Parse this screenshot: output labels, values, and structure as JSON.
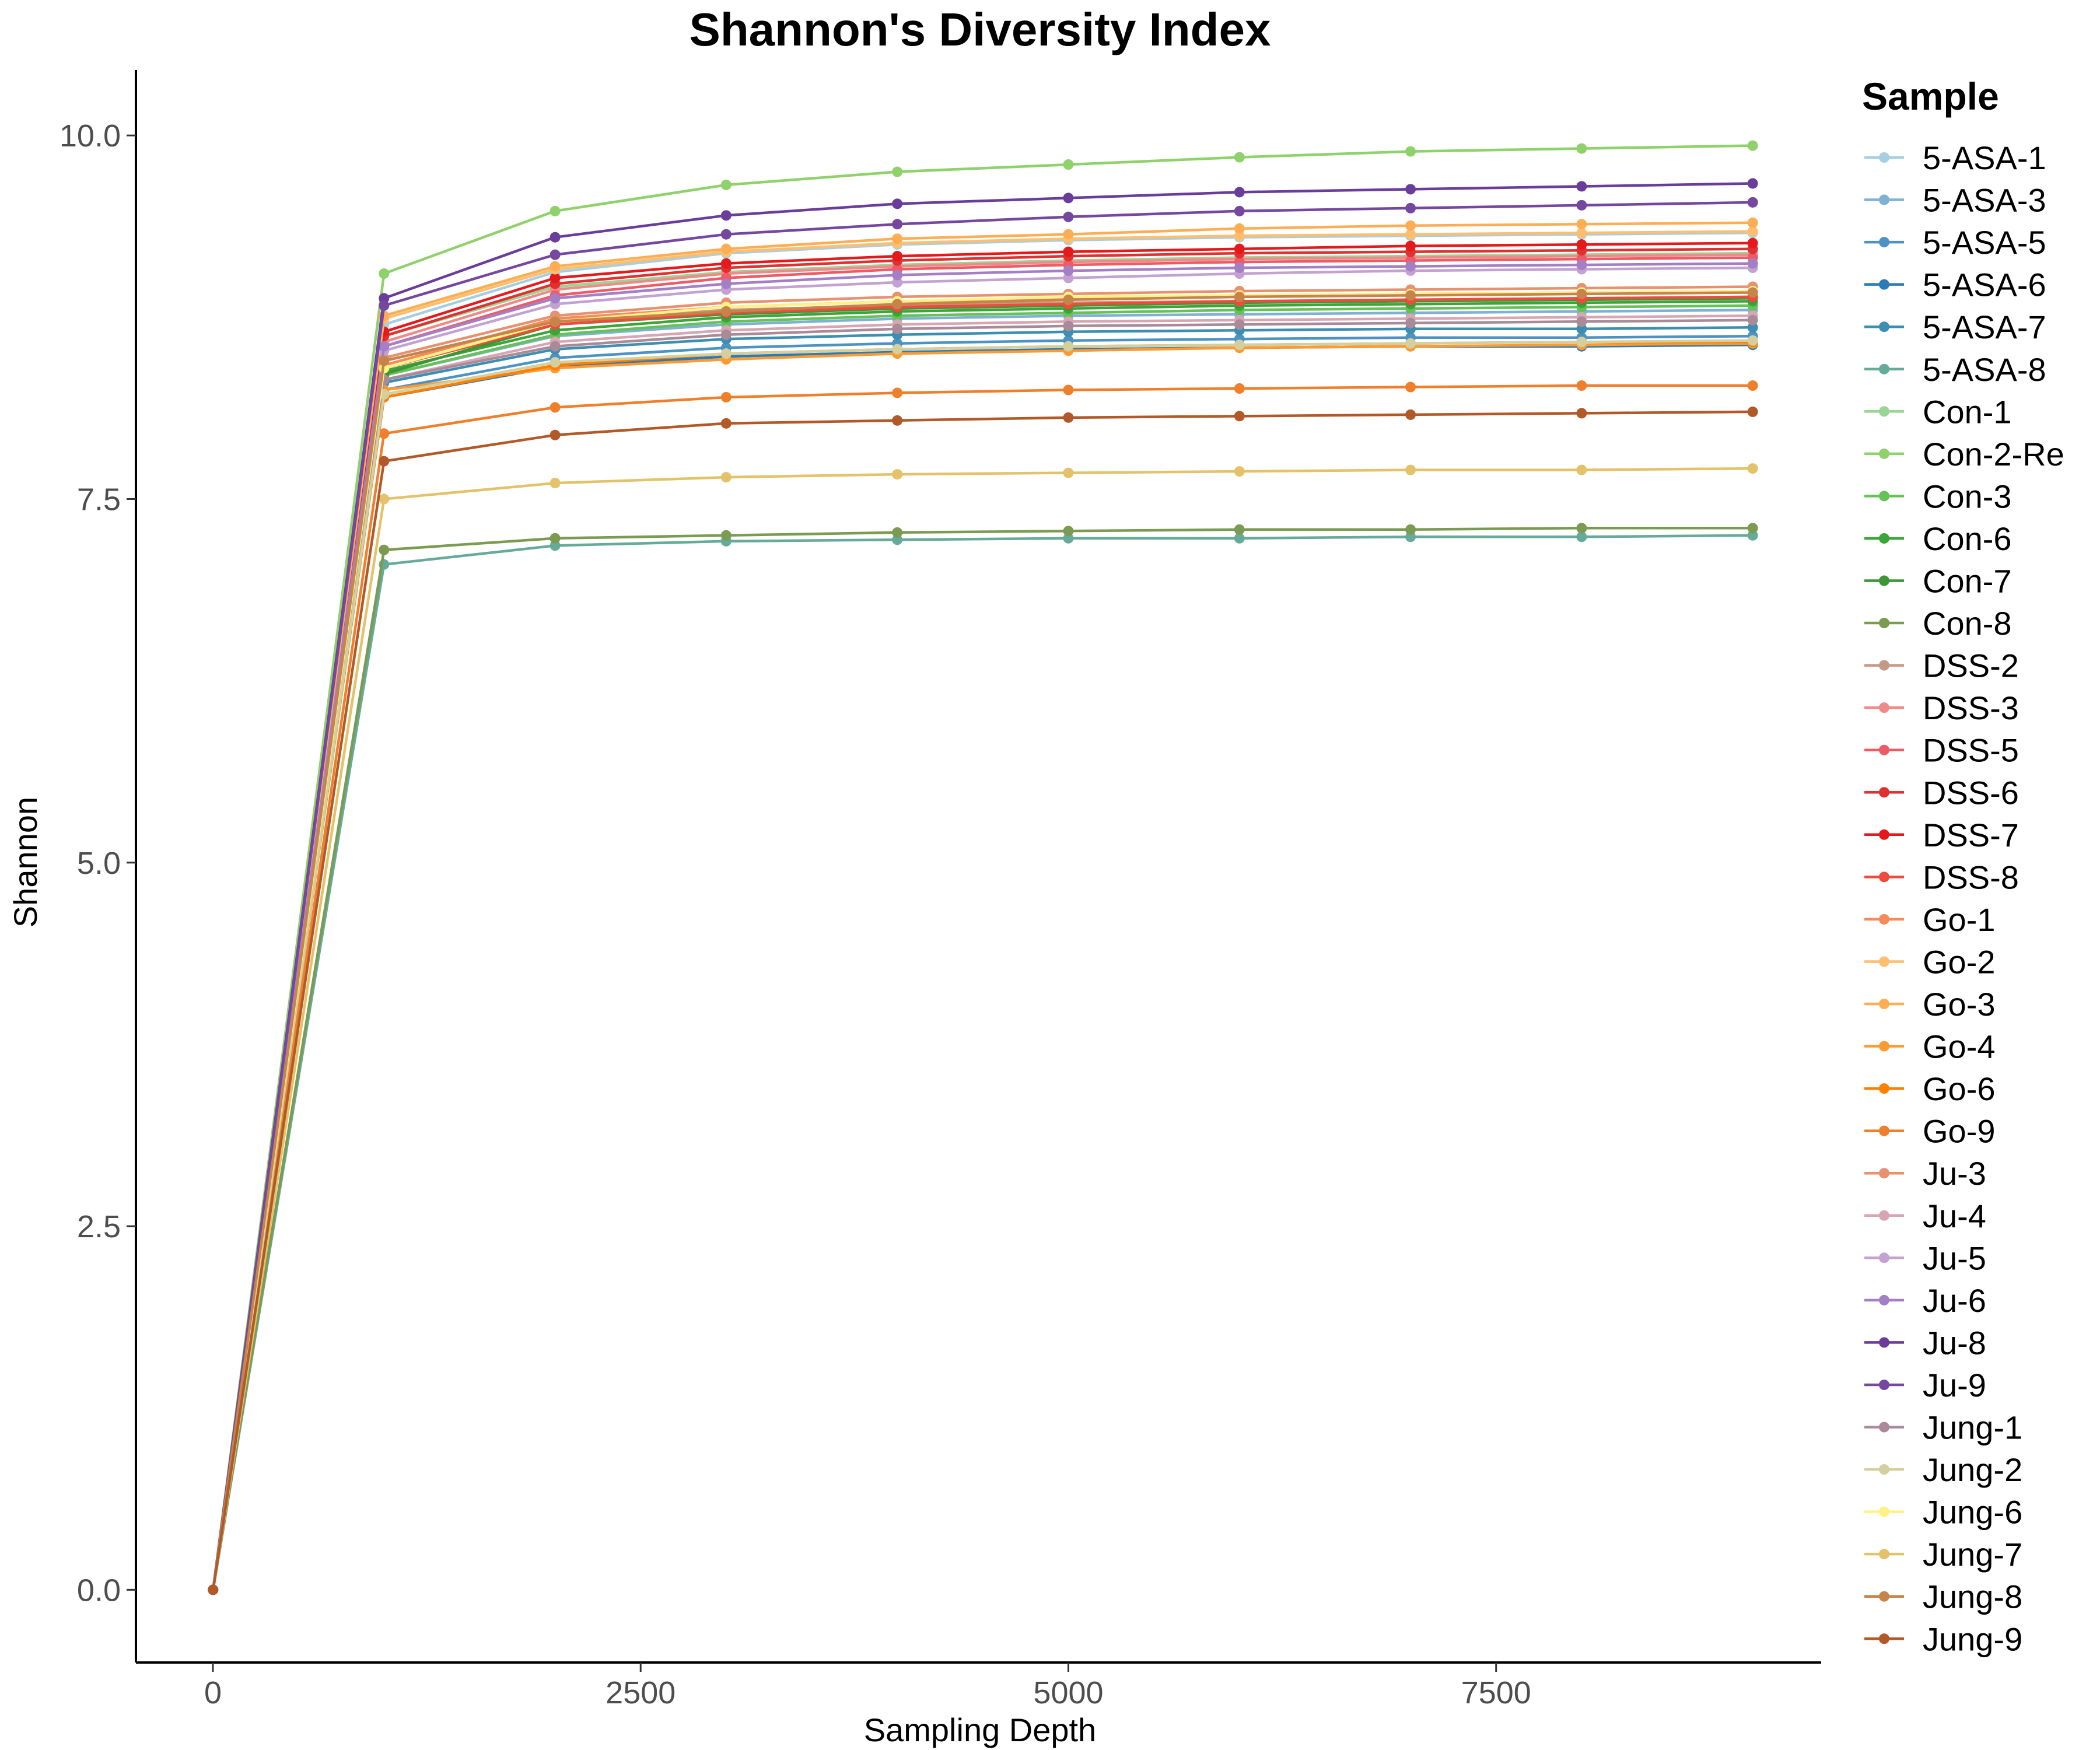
{
  "chart_data": {
    "type": "line",
    "title": "Shannon's Diversity Index",
    "xlabel": "Sampling Depth",
    "ylabel": "Shannon",
    "xlim": [
      -450,
      9400
    ],
    "ylim": [
      -0.5,
      10.45
    ],
    "x_ticks": [
      0,
      2500,
      5000,
      7500
    ],
    "x_tick_labels": [
      "0",
      "2500",
      "5000",
      "7500"
    ],
    "y_ticks": [
      0,
      2.5,
      5,
      7.5,
      10
    ],
    "y_tick_labels": [
      "0.0",
      "2.5",
      "5.0",
      "7.5",
      "10.0"
    ],
    "grid": false,
    "legend": {
      "title": "Sample",
      "position": "right"
    },
    "x": [
      1,
      1000,
      2000,
      3000,
      4000,
      5000,
      6000,
      7000,
      8000,
      9000
    ],
    "series": [
      {
        "name": "5-ASA-1",
        "color": "#a6cee3",
        "values": [
          0,
          8.7,
          9.06,
          9.19,
          9.25,
          9.28,
          9.3,
          9.31,
          9.32,
          9.33
        ]
      },
      {
        "name": "5-ASA-3",
        "color": "#7fb1d3",
        "values": [
          0,
          8.35,
          8.62,
          8.7,
          8.74,
          8.76,
          8.77,
          8.78,
          8.79,
          8.8
        ]
      },
      {
        "name": "5-ASA-5",
        "color": "#4c93c4",
        "values": [
          0,
          8.25,
          8.47,
          8.54,
          8.57,
          8.59,
          8.6,
          8.61,
          8.61,
          8.62
        ]
      },
      {
        "name": "5-ASA-6",
        "color": "#2c7bb6",
        "values": [
          0,
          8.2,
          8.41,
          8.48,
          8.51,
          8.53,
          8.54,
          8.55,
          8.55,
          8.56
        ]
      },
      {
        "name": "5-ASA-7",
        "color": "#3d8eb0",
        "values": [
          0,
          8.3,
          8.53,
          8.6,
          8.63,
          8.65,
          8.66,
          8.67,
          8.67,
          8.68
        ]
      },
      {
        "name": "5-ASA-8",
        "color": "#66aa99",
        "values": [
          0,
          7.05,
          7.18,
          7.21,
          7.22,
          7.23,
          7.23,
          7.24,
          7.24,
          7.25
        ]
      },
      {
        "name": "Con-1",
        "color": "#99d594",
        "values": [
          0,
          8.62,
          8.96,
          9.06,
          9.11,
          9.14,
          9.16,
          9.17,
          9.18,
          9.19
        ]
      },
      {
        "name": "Con-2-Re",
        "color": "#8fd16b",
        "values": [
          0,
          9.05,
          9.48,
          9.66,
          9.75,
          9.8,
          9.85,
          9.89,
          9.91,
          9.93
        ]
      },
      {
        "name": "Con-3",
        "color": "#66c156",
        "values": [
          0,
          8.35,
          8.63,
          8.72,
          8.76,
          8.78,
          8.8,
          8.81,
          8.82,
          8.83
        ]
      },
      {
        "name": "Con-6",
        "color": "#3da43a",
        "values": [
          0,
          8.38,
          8.66,
          8.75,
          8.79,
          8.81,
          8.83,
          8.84,
          8.85,
          8.86
        ]
      },
      {
        "name": "Con-7",
        "color": "#3d9635",
        "values": [
          0,
          8.36,
          8.7,
          8.77,
          8.81,
          8.83,
          8.85,
          8.86,
          8.87,
          8.88
        ]
      },
      {
        "name": "Con-8",
        "color": "#7b9b52",
        "values": [
          0,
          7.15,
          7.23,
          7.25,
          7.27,
          7.28,
          7.29,
          7.29,
          7.3,
          7.3
        ]
      },
      {
        "name": "DSS-2",
        "color": "#c49a86",
        "values": [
          0,
          8.45,
          8.72,
          8.8,
          8.83,
          8.85,
          8.86,
          8.87,
          8.88,
          8.89
        ]
      },
      {
        "name": "DSS-3",
        "color": "#f08a8a",
        "values": [
          0,
          8.58,
          8.94,
          9.05,
          9.1,
          9.13,
          9.15,
          9.16,
          9.17,
          9.18
        ]
      },
      {
        "name": "DSS-5",
        "color": "#ec5b66",
        "values": [
          0,
          8.55,
          8.9,
          9.02,
          9.08,
          9.11,
          9.13,
          9.14,
          9.15,
          9.16
        ]
      },
      {
        "name": "DSS-6",
        "color": "#e03030",
        "values": [
          0,
          8.62,
          8.98,
          9.09,
          9.14,
          9.17,
          9.19,
          9.2,
          9.21,
          9.22
        ]
      },
      {
        "name": "DSS-7",
        "color": "#e31a1c",
        "values": [
          0,
          8.65,
          9.02,
          9.12,
          9.17,
          9.2,
          9.22,
          9.24,
          9.25,
          9.26
        ]
      },
      {
        "name": "DSS-8",
        "color": "#ef4a3c",
        "values": [
          0,
          8.4,
          8.7,
          8.78,
          8.82,
          8.84,
          8.86,
          8.87,
          8.88,
          8.89
        ]
      },
      {
        "name": "Go-1",
        "color": "#f58a5a",
        "values": [
          0,
          8.42,
          8.74,
          8.82,
          8.86,
          8.88,
          8.9,
          8.91,
          8.92,
          8.93
        ]
      },
      {
        "name": "Go-2",
        "color": "#fdbf6f",
        "values": [
          0,
          8.74,
          9.08,
          9.2,
          9.26,
          9.29,
          9.31,
          9.32,
          9.33,
          9.34
        ]
      },
      {
        "name": "Go-3",
        "color": "#fdae55",
        "values": [
          0,
          8.76,
          9.1,
          9.22,
          9.29,
          9.32,
          9.36,
          9.38,
          9.39,
          9.4
        ]
      },
      {
        "name": "Go-4",
        "color": "#fe9a30",
        "values": [
          0,
          8.25,
          8.4,
          8.46,
          8.5,
          8.52,
          8.54,
          8.55,
          8.56,
          8.57
        ]
      },
      {
        "name": "Go-6",
        "color": "#ff7f00",
        "values": [
          0,
          8.2,
          8.42,
          8.5,
          8.53,
          8.55,
          8.56,
          8.57,
          8.58,
          8.58
        ]
      },
      {
        "name": "Go-9",
        "color": "#f07f2b",
        "values": [
          0,
          7.95,
          8.13,
          8.2,
          8.23,
          8.25,
          8.26,
          8.27,
          8.28,
          8.28
        ]
      },
      {
        "name": "Ju-3",
        "color": "#e7916e",
        "values": [
          0,
          8.47,
          8.76,
          8.85,
          8.89,
          8.91,
          8.93,
          8.94,
          8.95,
          8.96
        ]
      },
      {
        "name": "Ju-4",
        "color": "#d7a6b3",
        "values": [
          0,
          8.32,
          8.58,
          8.66,
          8.7,
          8.72,
          8.73,
          8.74,
          8.75,
          8.76
        ]
      },
      {
        "name": "Ju-5",
        "color": "#c3a2d2",
        "values": [
          0,
          8.52,
          8.84,
          8.94,
          8.99,
          9.02,
          9.05,
          9.07,
          9.08,
          9.09
        ]
      },
      {
        "name": "Ju-6",
        "color": "#a57fc6",
        "values": [
          0,
          8.55,
          8.88,
          8.98,
          9.04,
          9.07,
          9.09,
          9.1,
          9.11,
          9.12
        ]
      },
      {
        "name": "Ju-8",
        "color": "#6a3d9a",
        "values": [
          0,
          8.88,
          9.3,
          9.45,
          9.53,
          9.57,
          9.61,
          9.63,
          9.65,
          9.67
        ]
      },
      {
        "name": "Ju-9",
        "color": "#76479f",
        "values": [
          0,
          8.83,
          9.18,
          9.32,
          9.39,
          9.44,
          9.48,
          9.5,
          9.52,
          9.54
        ]
      },
      {
        "name": "Jung-1",
        "color": "#a88a99",
        "values": [
          0,
          8.32,
          8.55,
          8.63,
          8.67,
          8.69,
          8.7,
          8.71,
          8.72,
          8.73
        ]
      },
      {
        "name": "Jung-2",
        "color": "#d3cf9e",
        "values": [
          0,
          8.22,
          8.44,
          8.5,
          8.53,
          8.55,
          8.56,
          8.57,
          8.58,
          8.59
        ]
      },
      {
        "name": "Jung-6",
        "color": "#fff285",
        "values": [
          0,
          8.4,
          8.72,
          8.82,
          8.86,
          8.89,
          8.9,
          8.91,
          8.92,
          8.93
        ]
      },
      {
        "name": "Jung-7",
        "color": "#e3c26a",
        "values": [
          0,
          7.5,
          7.61,
          7.65,
          7.67,
          7.68,
          7.69,
          7.7,
          7.7,
          7.71
        ]
      },
      {
        "name": "Jung-8",
        "color": "#c6844a",
        "values": [
          0,
          8.45,
          8.72,
          8.79,
          8.84,
          8.87,
          8.89,
          8.9,
          8.91,
          8.92
        ]
      },
      {
        "name": "Jung-9",
        "color": "#b15928",
        "values": [
          0,
          7.76,
          7.94,
          8.02,
          8.04,
          8.06,
          8.07,
          8.08,
          8.09,
          8.1
        ]
      }
    ]
  }
}
